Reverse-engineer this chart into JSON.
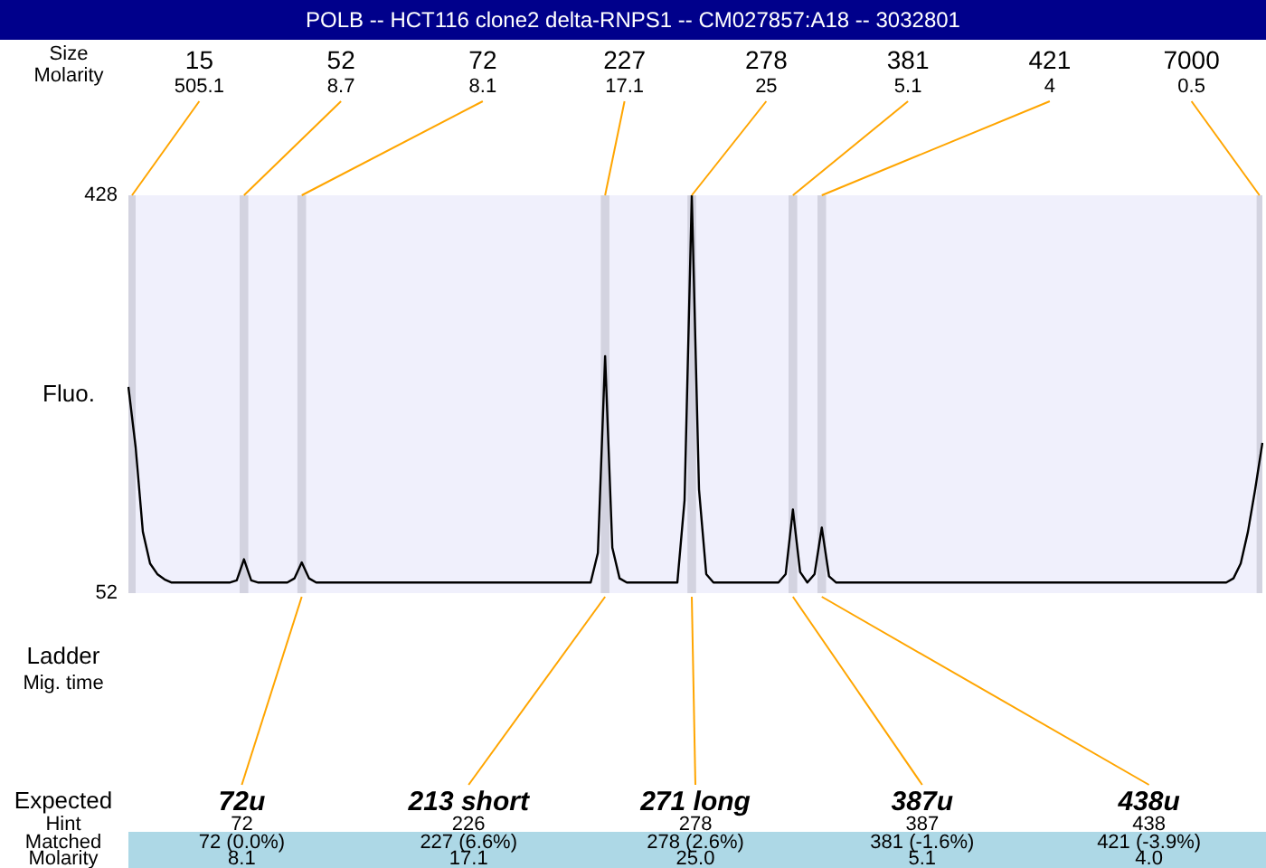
{
  "chart_data": {
    "type": "line",
    "title": "POLB -- HCT116 clone2 delta-RNPS1 -- CM027857:A18 -- 3032801",
    "ylabel": "Fluo.",
    "categories": [
      null,
      null,
      null,
      null,
      null,
      null,
      null,
      null,
      null,
      null,
      null,
      null,
      null,
      null,
      null,
      null,
      null,
      null,
      null,
      null,
      null,
      null,
      null,
      null,
      null,
      null,
      null,
      null,
      null,
      null,
      null,
      null,
      null,
      null,
      null,
      null,
      null,
      null,
      null,
      null,
      null,
      null,
      null,
      null,
      null,
      null,
      null,
      null,
      null,
      null,
      null,
      null,
      null,
      null,
      null,
      null,
      null,
      null,
      null,
      null,
      null,
      null,
      null,
      null,
      null,
      null,
      null,
      null,
      null,
      null,
      null,
      null,
      null,
      null,
      null,
      null,
      null,
      null,
      null,
      null,
      null,
      null,
      null,
      null,
      null,
      null,
      null,
      null,
      null,
      null,
      null,
      null,
      null,
      null,
      null,
      null,
      null,
      null,
      null,
      null,
      null,
      null,
      null,
      null,
      null,
      null,
      null,
      null,
      null,
      null,
      null,
      null,
      null,
      null,
      null,
      null,
      null,
      null,
      null,
      null,
      null,
      null,
      null,
      null,
      null,
      null,
      null,
      null,
      null,
      null,
      null,
      null,
      null,
      null,
      null,
      null,
      null,
      null,
      null,
      null,
      null,
      null,
      null,
      null,
      null,
      null,
      null,
      null,
      null,
      null,
      null,
      null,
      null,
      null,
      null,
      null,
      null,
      null
    ],
    "values": [
      247,
      190,
      110,
      80,
      70,
      65,
      62,
      62,
      62,
      62,
      62,
      62,
      62,
      62,
      62,
      64,
      84,
      64,
      62,
      62,
      62,
      62,
      62,
      66,
      81,
      66,
      62,
      62,
      62,
      62,
      62,
      62,
      62,
      62,
      62,
      62,
      62,
      62,
      62,
      62,
      62,
      62,
      62,
      62,
      62,
      62,
      62,
      62,
      62,
      62,
      62,
      62,
      62,
      62,
      62,
      62,
      62,
      62,
      62,
      62,
      62,
      62,
      62,
      62,
      62,
      90,
      276,
      95,
      66,
      62,
      62,
      62,
      62,
      62,
      62,
      62,
      62,
      140,
      428,
      150,
      70,
      62,
      62,
      62,
      62,
      62,
      62,
      62,
      62,
      62,
      62,
      70,
      131,
      72,
      62,
      70,
      114,
      68,
      62,
      62,
      62,
      62,
      62,
      62,
      62,
      62,
      62,
      62,
      62,
      62,
      62,
      62,
      62,
      62,
      62,
      62,
      62,
      62,
      62,
      62,
      62,
      62,
      62,
      62,
      62,
      62,
      62,
      62,
      62,
      62,
      62,
      62,
      62,
      62,
      62,
      62,
      62,
      62,
      62,
      62,
      62,
      62,
      62,
      62,
      62,
      62,
      62,
      62,
      62,
      62,
      62,
      62,
      62,
      66,
      80,
      110,
      150,
      194
    ],
    "color": "#000000",
    "ylim": [
      52,
      428
    ],
    "yticks": [
      52,
      428
    ],
    "tick_labels": "y",
    "grid": false,
    "legend": false,
    "annotations": [
      "Size",
      "Molarity",
      "Ladder",
      "Mig. time",
      "Expected",
      "Hint",
      "Matched",
      "Molarity",
      "15",
      "505.1",
      "52",
      "8.7",
      "72",
      "8.1",
      "227",
      "17.1",
      "278",
      "25",
      "381",
      "5.1",
      "421",
      "4",
      "7000",
      "0.5",
      "72u",
      "72",
      "72 (0.0%)",
      "8.1",
      "213 short",
      "226",
      "227 (6.6%)",
      "17.1",
      "271 long",
      "278",
      "278 (2.6%)",
      "25.0",
      "387u",
      "387",
      "381 (-1.6%)",
      "5.1",
      "438u",
      "438",
      "421 (-3.9%)",
      "4.0"
    ]
  }
}
